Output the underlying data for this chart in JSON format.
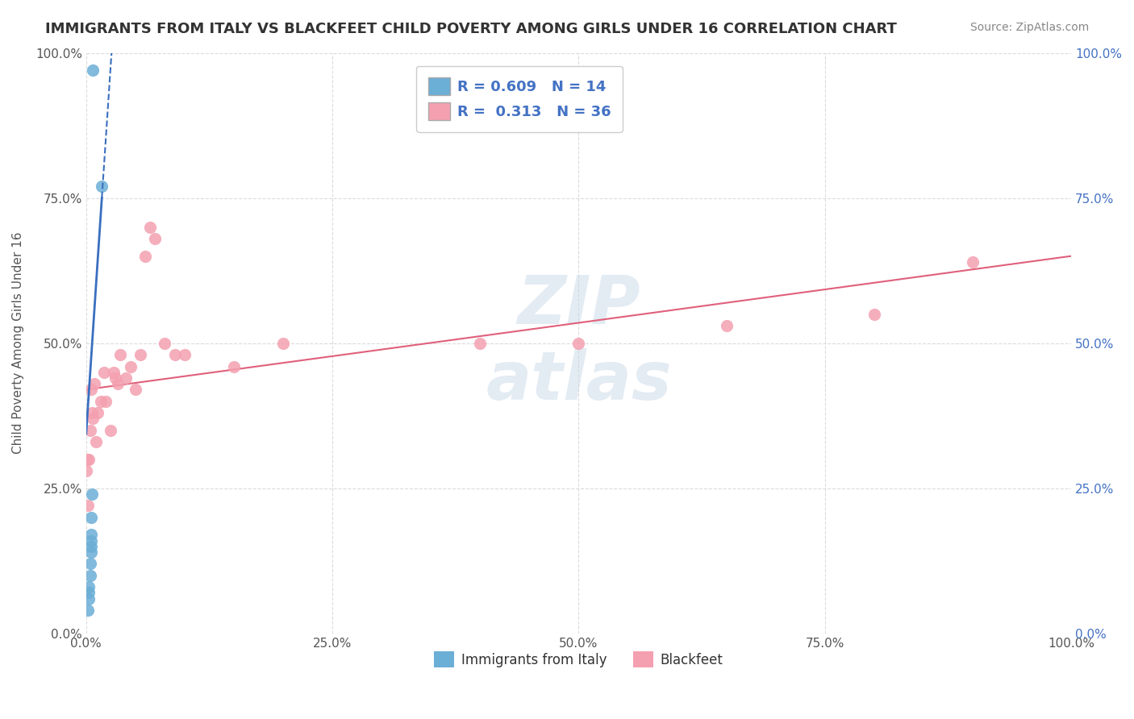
{
  "title": "IMMIGRANTS FROM ITALY VS BLACKFEET CHILD POVERTY AMONG GIRLS UNDER 16 CORRELATION CHART",
  "source": "Source: ZipAtlas.com",
  "ylabel": "Child Poverty Among Girls Under 16",
  "xlim": [
    0,
    1.0
  ],
  "ylim": [
    0,
    1.0
  ],
  "xticks": [
    0.0,
    0.25,
    0.5,
    0.75,
    1.0
  ],
  "xticklabels": [
    "0.0%",
    "25.0%",
    "50.0%",
    "75.0%",
    "100.0%"
  ],
  "yticks": [
    0.0,
    0.25,
    0.5,
    0.75,
    1.0
  ],
  "yticklabels": [
    "0.0%",
    "25.0%",
    "50.0%",
    "75.0%",
    "100.0%"
  ],
  "italy_color": "#6baed6",
  "blackfeet_color": "#f4a0b0",
  "italy_R": 0.609,
  "italy_N": 14,
  "blackfeet_R": 0.313,
  "blackfeet_N": 36,
  "italy_line_color": "#3a6fbf",
  "blackfeet_line_color": "#e0607a",
  "background_color": "#ffffff",
  "italy_scatter_x": [
    0.002,
    0.003,
    0.003,
    0.003,
    0.004,
    0.004,
    0.005,
    0.005,
    0.005,
    0.005,
    0.005,
    0.006,
    0.007,
    0.016
  ],
  "italy_scatter_y": [
    0.04,
    0.06,
    0.07,
    0.08,
    0.1,
    0.12,
    0.14,
    0.15,
    0.16,
    0.17,
    0.2,
    0.24,
    0.97,
    0.77
  ],
  "blackfeet_scatter_x": [
    0.0,
    0.001,
    0.002,
    0.003,
    0.004,
    0.005,
    0.006,
    0.007,
    0.008,
    0.01,
    0.012,
    0.015,
    0.018,
    0.02,
    0.025,
    0.028,
    0.03,
    0.032,
    0.035,
    0.04,
    0.045,
    0.05,
    0.055,
    0.06,
    0.065,
    0.07,
    0.08,
    0.09,
    0.1,
    0.15,
    0.2,
    0.4,
    0.5,
    0.65,
    0.8,
    0.9
  ],
  "blackfeet_scatter_y": [
    0.28,
    0.3,
    0.22,
    0.3,
    0.35,
    0.42,
    0.38,
    0.37,
    0.43,
    0.33,
    0.38,
    0.4,
    0.45,
    0.4,
    0.35,
    0.45,
    0.44,
    0.43,
    0.48,
    0.44,
    0.46,
    0.42,
    0.48,
    0.65,
    0.7,
    0.68,
    0.5,
    0.48,
    0.48,
    0.46,
    0.5,
    0.5,
    0.5,
    0.53,
    0.55,
    0.64
  ],
  "slope_italy": 25.4,
  "intercept_italy": 0.344,
  "blackfeet_line_x": [
    0.0,
    1.0
  ],
  "blackfeet_line_y": [
    0.42,
    0.65
  ],
  "italy_legend_label": "R = 0.609   N = 14",
  "blackfeet_legend_label": "R =  0.313   N = 36",
  "italy_bottom_label": "Immigrants from Italy",
  "blackfeet_bottom_label": "Blackfeet"
}
